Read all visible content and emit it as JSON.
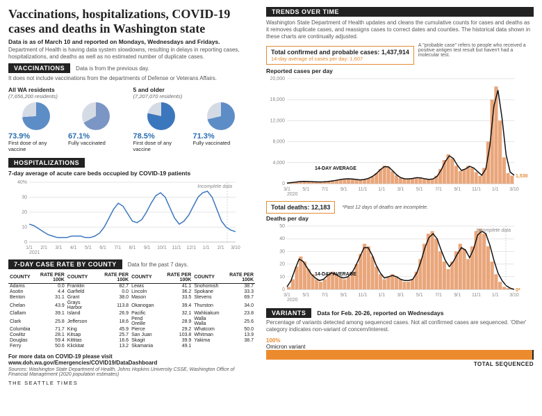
{
  "headline": "Vaccinations, hospitalizations, COVID-19 cases and deaths in Washington state",
  "subhead": "Data is as of March 10 and reported on Mondays, Wednesdays and Fridays.",
  "intro_note": "Department of Health is having data system slowdowns, resulting in delays in reporting cases, hospitalizations, and deaths as well as no estimated number of duplicate cases.",
  "vaccinations": {
    "title": "VACCINATIONS",
    "side_note": "Data is from the previous day.",
    "sub_note": "It does not include vaccinations from the departments of Defense or Veterans Affairs.",
    "groups": [
      {
        "title": "All WA residents",
        "sub": "(7,656,200 residents)",
        "pies": [
          {
            "pct": "73.9%",
            "label": "First dose of any vaccine",
            "value": 73.9,
            "fill": "#5d8dc6",
            "rest": "#d5dbe4"
          },
          {
            "pct": "67.1%",
            "label": "Fully vaccinated",
            "value": 67.1,
            "fill": "#7b96c4",
            "rest": "#d5dbe4"
          }
        ]
      },
      {
        "title": "5 and older",
        "sub": "(7,207,070 residents)",
        "pies": [
          {
            "pct": "78.5%",
            "label": "First dose of any vaccine",
            "value": 78.5,
            "fill": "#3b77bd",
            "rest": "#d5dbe4"
          },
          {
            "pct": "71.3%",
            "label": "Fully vaccinated",
            "value": 71.3,
            "fill": "#5d8dc6",
            "rest": "#d5dbe4"
          }
        ]
      }
    ]
  },
  "hosp": {
    "title": "HOSPITALIZATIONS",
    "sub": "7-day average of acute care beds occupied by COVID-19 patients",
    "incomplete": "Incomplete data",
    "y_max": 40,
    "y_step": 10,
    "y_suffix_first": "%",
    "x_labels": [
      "1/1",
      "2/1",
      "3/1",
      "4/1",
      "5/1",
      "6/1",
      "7/1",
      "8/1",
      "9/1",
      "10/1",
      "11/1",
      "12/1",
      "1/1",
      "2/1",
      "3/10"
    ],
    "x_year": "2021",
    "line_color": "#3b77bd",
    "series": [
      12,
      11,
      9,
      7,
      5,
      4,
      3,
      3,
      3,
      4,
      4,
      4,
      3,
      3,
      4,
      6,
      10,
      16,
      22,
      26,
      24,
      19,
      14,
      13,
      15,
      20,
      26,
      31,
      33,
      30,
      23,
      16,
      12,
      14,
      18,
      24,
      30,
      33,
      34,
      30,
      22,
      14,
      10,
      8,
      7
    ]
  },
  "county": {
    "title": "7-DAY CASE RATE BY COUNTY",
    "side_note": "Data for the past 7 days.",
    "col_head_name": "COUNTY",
    "col_head_rate": "RATE PER 100K",
    "cols": [
      [
        [
          "Adams",
          "0.0"
        ],
        [
          "Asotin",
          "4.4"
        ],
        [
          "Benton",
          "31.1"
        ],
        [
          "Chelan",
          "43.9"
        ],
        [
          "Clallam",
          "39.1"
        ],
        [
          "Clark",
          "25.8"
        ],
        [
          "Columbia",
          "71.7"
        ],
        [
          "Cowlitz",
          "28.1"
        ],
        [
          "Douglas",
          "59.4"
        ],
        [
          "Ferry",
          "50.6"
        ]
      ],
      [
        [
          "Franklin",
          "82.7"
        ],
        [
          "Garfield",
          "0.0"
        ],
        [
          "Grant",
          "38.0"
        ],
        [
          "Grays Harbor",
          "113.8"
        ],
        [
          "Island",
          "26.9"
        ],
        [
          "Jefferson",
          "18.6"
        ],
        [
          "King",
          "45.9"
        ],
        [
          "Kitsap",
          "25.7"
        ],
        [
          "Kittitas",
          "16.6"
        ],
        [
          "Klickitat",
          "13.2"
        ]
      ],
      [
        [
          "Lewis",
          "41.1"
        ],
        [
          "Lincoln",
          "36.2"
        ],
        [
          "Mason",
          "33.5"
        ],
        [
          "Okanogan",
          "39.4"
        ],
        [
          "Pacific",
          "32.1"
        ],
        [
          "Pend Oreille",
          "28.9"
        ],
        [
          "Pierce",
          "29.2"
        ],
        [
          "San Juan",
          "103.8"
        ],
        [
          "Skagit",
          "39.9"
        ],
        [
          "Skamania",
          "49.1"
        ]
      ],
      [
        [
          "Snohomish",
          "38.7"
        ],
        [
          "Spokane",
          "33.3"
        ],
        [
          "Stevens",
          "69.7"
        ],
        [
          "Thurston",
          "34.0"
        ],
        [
          "Wahkiakum",
          "23.8"
        ],
        [
          "Walla Walla",
          "25.6"
        ],
        [
          "Whatcom",
          "50.0"
        ],
        [
          "Whitman",
          "13.9"
        ],
        [
          "Yakima",
          "38.7"
        ]
      ]
    ]
  },
  "footer": {
    "more": "For more data on COVID-19 please visit",
    "url": "www.doh.wa.gov/Emergencies/COVID19/DataDashboard",
    "sources": "Sources: Washington State Department of Health, Johns Hopkins University CSSE, Washington Office of Financial Management (2020 population estimates)",
    "brand": "THE SEATTLE TIMES"
  },
  "trends": {
    "title": "TRENDS OVER TIME",
    "intro": "Washington State Department of Health updates and cleans the cumulative counts for cases and deaths as it removes duplicate cases, and reassigns cases to correct dates and counties. The historical data shown in these charts are continually adjusted.",
    "cases": {
      "box_main": "Total confirmed and probable cases: 1,437,914",
      "box_sub": "14-day average of cases per day: 1,607",
      "probable_note": "A \"probable case\" refers to people who received a positive antigen test result but haven't had a molecular test.",
      "chart_title": "Reported cases per day",
      "avg_label": "14-DAY AVERAGE",
      "end_label": "1,530",
      "y_max": 20000,
      "y_step": 4000,
      "x_labels": [
        "3/1",
        "5/1",
        "7/1",
        "9/1",
        "11/1",
        "1/1",
        "3/1",
        "5/1",
        "7/1",
        "9/1",
        "11/1",
        "1/1",
        "3/10"
      ],
      "x_year": "2020",
      "bar_color": "#e9a67b",
      "avg_color": "#111",
      "bars": [
        100,
        200,
        300,
        400,
        450,
        400,
        380,
        350,
        320,
        350,
        400,
        500,
        650,
        800,
        900,
        950,
        900,
        800,
        700,
        800,
        1000,
        1400,
        2000,
        2800,
        3400,
        3200,
        2400,
        1600,
        1100,
        900,
        900,
        1000,
        1200,
        1100,
        900,
        800,
        900,
        1500,
        2800,
        4500,
        5600,
        4800,
        3400,
        2400,
        2800,
        3400,
        3000,
        2200,
        1500,
        3000,
        8000,
        16000,
        18500,
        12000,
        5000,
        2000,
        1530
      ],
      "avg": [
        120,
        200,
        290,
        380,
        430,
        410,
        380,
        350,
        330,
        350,
        400,
        490,
        620,
        770,
        880,
        930,
        900,
        810,
        720,
        790,
        980,
        1350,
        1900,
        2650,
        3250,
        3200,
        2500,
        1700,
        1150,
        930,
        910,
        990,
        1150,
        1100,
        920,
        820,
        900,
        1400,
        2600,
        4200,
        5300,
        4800,
        3500,
        2500,
        2800,
        3300,
        3000,
        2300,
        1600,
        2800,
        7200,
        14800,
        17800,
        12500,
        5500,
        2200,
        1607
      ]
    },
    "deaths": {
      "box_main": "Total deaths: 12,183",
      "past_note": "*Past 12 days of deaths are incomplete.",
      "chart_title": "Deaths per day",
      "avg_label": "14-DAY AVERAGE",
      "incomplete": "Incomplete data",
      "end_label": "0*",
      "y_max": 50,
      "y_step": 10,
      "x_labels": [
        "3/1",
        "5/1",
        "7/1",
        "9/1",
        "11/1",
        "1/1",
        "3/1",
        "5/1",
        "7/1",
        "9/1",
        "11/1",
        "1/1",
        "3/10"
      ],
      "x_year": "2020",
      "bar_color": "#e9a67b",
      "avg_color": "#111",
      "bars": [
        2,
        8,
        18,
        26,
        22,
        16,
        12,
        8,
        6,
        8,
        12,
        14,
        12,
        10,
        8,
        10,
        14,
        20,
        28,
        36,
        34,
        26,
        18,
        12,
        8,
        10,
        12,
        10,
        8,
        6,
        6,
        8,
        14,
        24,
        36,
        44,
        46,
        40,
        30,
        22,
        16,
        22,
        30,
        36,
        32,
        24,
        34,
        46,
        48,
        44,
        34,
        22,
        12,
        6,
        2,
        1,
        0
      ],
      "avg": [
        2,
        7,
        16,
        24,
        22,
        17,
        12,
        9,
        7,
        8,
        11,
        13,
        12,
        10,
        9,
        10,
        13,
        19,
        26,
        33,
        33,
        27,
        19,
        13,
        9,
        10,
        11,
        10,
        8,
        7,
        7,
        8,
        13,
        22,
        33,
        41,
        44,
        40,
        31,
        23,
        18,
        22,
        28,
        33,
        31,
        25,
        32,
        43,
        46,
        44,
        35,
        23,
        13,
        7,
        3,
        1,
        0
      ]
    }
  },
  "variants": {
    "title": "VARIANTS",
    "side_note": "Data for Feb. 20-26, reported on Wednesdays",
    "intro": "Percentage of variants detected among sequenced cases. Not all confirmed cases are sequenced. 'Other' category indicates non-variant of concern/interest.",
    "pct": "100%",
    "name": "Omicron variant",
    "total": "TOTAL SEQUENCED",
    "bar_color": "#ec8b2e"
  }
}
